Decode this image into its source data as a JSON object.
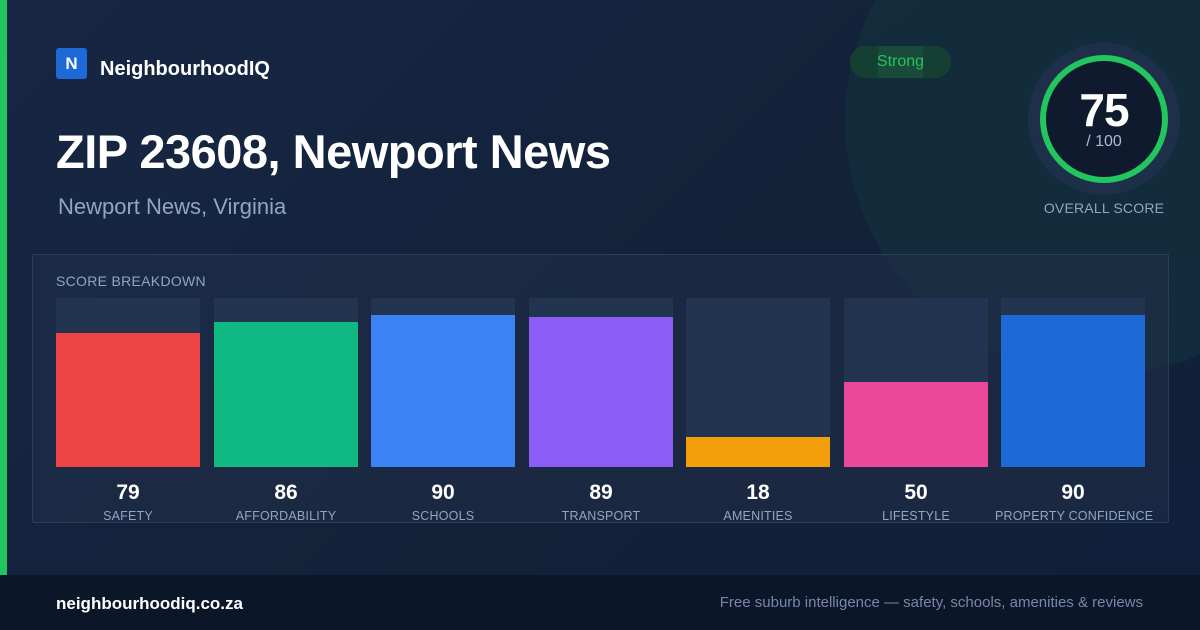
{
  "brand": {
    "logo_letter": "N",
    "name": "NeighbourhoodIQ"
  },
  "header": {
    "title": "ZIP 23608, Newport News",
    "subtitle": "Newport News, Virginia"
  },
  "badge": {
    "label": "Strong",
    "color": "#22c55e"
  },
  "overall": {
    "score": "75",
    "max": "/ 100",
    "label": "OVERALL SCORE",
    "fraction": 0.75
  },
  "breakdown": {
    "title": "SCORE BREAKDOWN",
    "items": [
      {
        "value": 79,
        "label": "SAFETY",
        "color": "#ef4444"
      },
      {
        "value": 86,
        "label": "AFFORDABILITY",
        "color": "#10b981"
      },
      {
        "value": 90,
        "label": "SCHOOLS",
        "color": "#3b82f6"
      },
      {
        "value": 89,
        "label": "TRANSPORT",
        "color": "#8b5cf6"
      },
      {
        "value": 18,
        "label": "AMENITIES",
        "color": "#f59e0b"
      },
      {
        "value": 50,
        "label": "LIFESTYLE",
        "color": "#ec4899"
      },
      {
        "value": 90,
        "label": "PROPERTY CONFIDENCE",
        "color": "#1d6ad6"
      }
    ]
  },
  "chart_data": {
    "type": "bar",
    "categories": [
      "SAFETY",
      "AFFORDABILITY",
      "SCHOOLS",
      "TRANSPORT",
      "AMENITIES",
      "LIFESTYLE",
      "PROPERTY CONFIDENCE"
    ],
    "values": [
      79,
      86,
      90,
      89,
      18,
      50,
      90
    ],
    "title": "SCORE BREAKDOWN",
    "ylim": [
      0,
      100
    ],
    "grid": false
  },
  "footer": {
    "url": "neighbourhoodiq.co.za",
    "tagline": "Free suburb intelligence — safety, schools, amenities & reviews"
  },
  "colors": {
    "accent": "#22c55e",
    "background": "#132038",
    "brand": "#1d6ad6"
  }
}
